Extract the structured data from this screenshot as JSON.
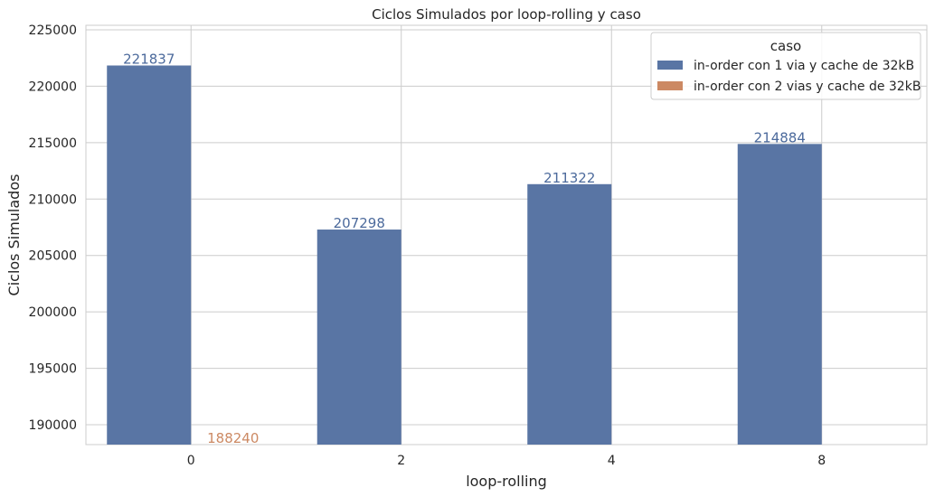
{
  "chart_data": {
    "type": "bar",
    "title": "Ciclos Simulados por loop-rolling y caso",
    "xlabel": "loop-rolling",
    "ylabel": "Ciclos Simulados",
    "categories": [
      "0",
      "2",
      "4",
      "8"
    ],
    "ylim": [
      188240,
      225400
    ],
    "yticks": [
      190000,
      195000,
      200000,
      205000,
      210000,
      215000,
      220000,
      225000
    ],
    "grid": true,
    "legend": {
      "title": "caso",
      "placement": "top-right"
    },
    "series": [
      {
        "name": "in-order con 1 via y cache de 32kB",
        "color": "#5975a4",
        "label_color": "#4c6a9c",
        "values": [
          221837,
          207298,
          211322,
          214884
        ],
        "labels": [
          "221837",
          "207298",
          "211322",
          "214884"
        ]
      },
      {
        "name": "in-order con 2 vias y cache de 32kB",
        "color": "#cc8963",
        "label_color": "#cc8963",
        "values": [
          188240,
          null,
          null,
          null
        ],
        "labels": [
          "188240",
          "",
          "",
          ""
        ]
      }
    ]
  }
}
